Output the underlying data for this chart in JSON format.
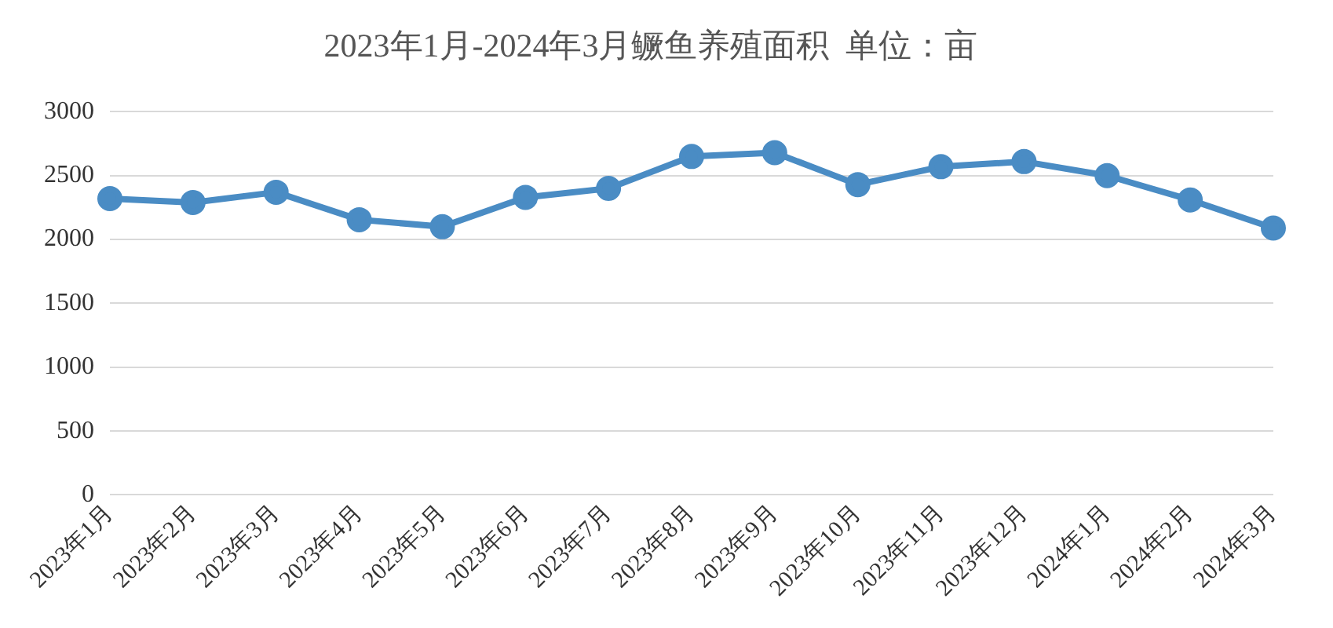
{
  "chart_data": {
    "type": "line",
    "title": "2023年1月-2024年3月鳜鱼养殖面积  单位：亩",
    "categories": [
      "2023年1月",
      "2023年2月",
      "2023年3月",
      "2023年4月",
      "2023年5月",
      "2023年6月",
      "2023年7月",
      "2023年8月",
      "2023年9月",
      "2023年10月",
      "2023年11月",
      "2023年12月",
      "2024年1月",
      "2024年2月",
      "2024年3月"
    ],
    "series": [
      {
        "color": "#4a8cc4",
        "values": [
          2320,
          2290,
          2370,
          2155,
          2100,
          2330,
          2400,
          2650,
          2680,
          2430,
          2570,
          2610,
          2500,
          2310,
          2090
        ]
      }
    ],
    "ylim": [
      0,
      3000
    ],
    "yticks": [
      0,
      500,
      1000,
      1500,
      2000,
      2500,
      3000
    ],
    "grid": "y",
    "legend": false,
    "marker": "circle",
    "line_style": "solid"
  }
}
